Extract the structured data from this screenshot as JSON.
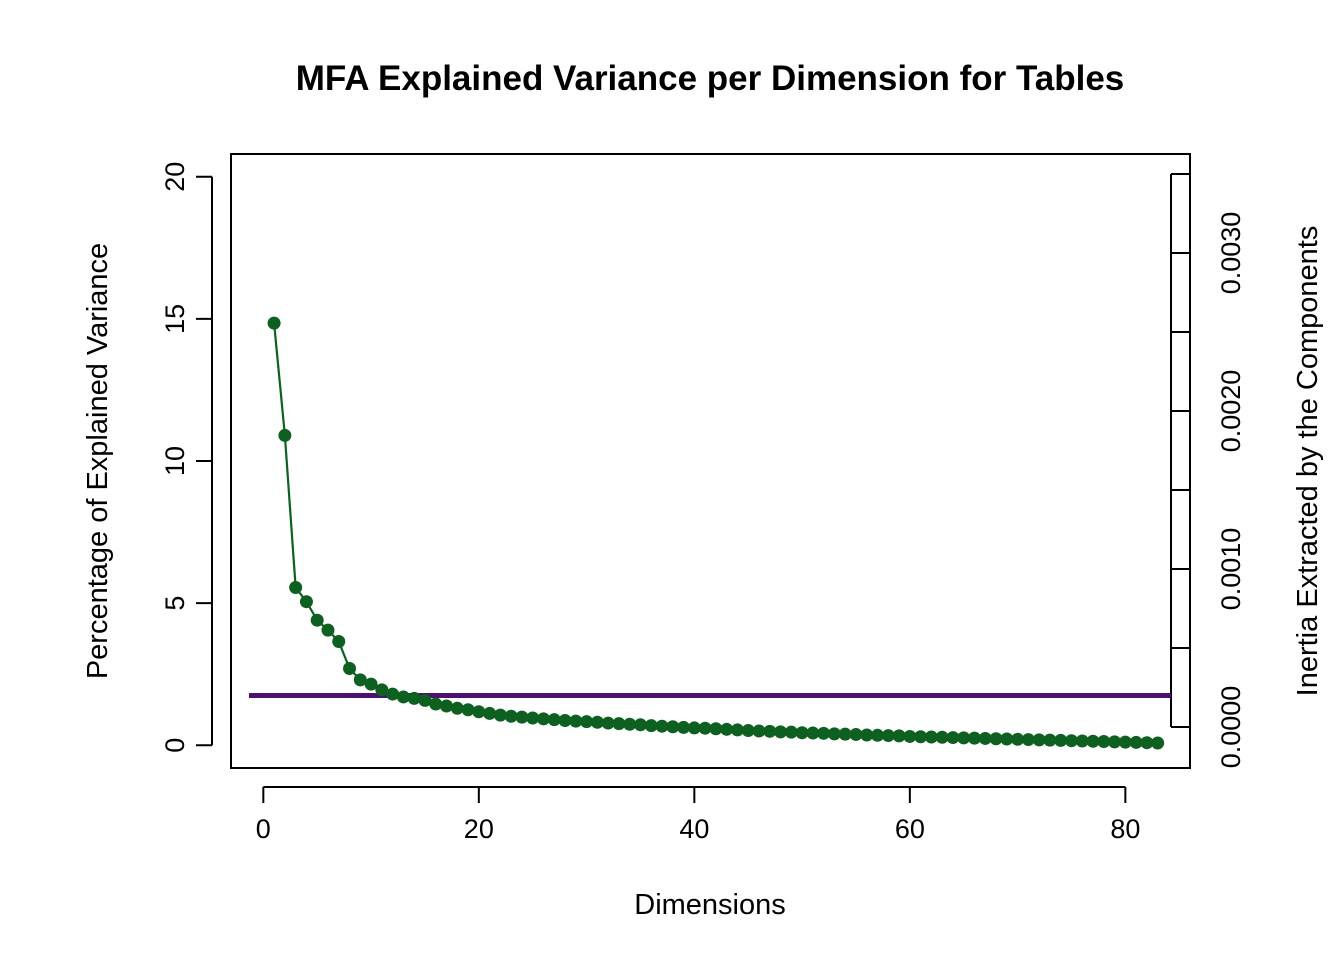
{
  "chart_data": {
    "type": "line",
    "title": "MFA Explained Variance per Dimension for Tables",
    "xlabel": "Dimensions",
    "ylabel": "Percentage of Explained Variance",
    "y2label": "Inertia Extracted by the Components",
    "xlim": [
      -3,
      86
    ],
    "ylim": [
      -0.8,
      20.8
    ],
    "y2range": [
      0.0,
      0.0035
    ],
    "xticks": [
      0,
      20,
      40,
      60,
      80
    ],
    "yticks": [
      0,
      5,
      10,
      15,
      20
    ],
    "y2ticks": [
      0.0,
      0.001,
      0.002,
      0.003
    ],
    "y2tick_labels": [
      "0.0000",
      "0.0010",
      "0.0020",
      "0.0030"
    ],
    "grid": false,
    "reference_line": {
      "y": 1.75,
      "color": "#4B1070"
    },
    "series": [
      {
        "color": "#0E6020",
        "x": [
          1,
          2,
          3,
          4,
          5,
          6,
          7,
          8,
          9,
          10,
          11,
          12,
          13,
          14,
          15,
          16,
          17,
          18,
          19,
          20,
          21,
          22,
          23,
          24,
          25,
          26,
          27,
          28,
          29,
          30,
          31,
          32,
          33,
          34,
          35,
          36,
          37,
          38,
          39,
          40,
          41,
          42,
          43,
          44,
          45,
          46,
          47,
          48,
          49,
          50,
          51,
          52,
          53,
          54,
          55,
          56,
          57,
          58,
          59,
          60,
          61,
          62,
          63,
          64,
          65,
          66,
          67,
          68,
          69,
          70,
          71,
          72,
          73,
          74,
          75,
          76,
          77,
          78,
          79,
          80,
          81,
          82,
          83
        ],
        "values": [
          14.85,
          10.9,
          5.55,
          5.05,
          4.4,
          4.05,
          3.65,
          2.7,
          2.3,
          2.15,
          1.95,
          1.8,
          1.7,
          1.65,
          1.58,
          1.45,
          1.38,
          1.3,
          1.25,
          1.18,
          1.12,
          1.06,
          1.02,
          0.99,
          0.96,
          0.93,
          0.9,
          0.87,
          0.85,
          0.83,
          0.81,
          0.78,
          0.76,
          0.74,
          0.72,
          0.69,
          0.67,
          0.65,
          0.63,
          0.61,
          0.6,
          0.58,
          0.56,
          0.54,
          0.52,
          0.5,
          0.49,
          0.47,
          0.46,
          0.44,
          0.43,
          0.42,
          0.4,
          0.39,
          0.38,
          0.36,
          0.35,
          0.34,
          0.33,
          0.31,
          0.3,
          0.29,
          0.28,
          0.27,
          0.26,
          0.25,
          0.24,
          0.23,
          0.22,
          0.21,
          0.2,
          0.19,
          0.18,
          0.17,
          0.16,
          0.15,
          0.14,
          0.13,
          0.12,
          0.11,
          0.1,
          0.09,
          0.08
        ]
      }
    ]
  }
}
